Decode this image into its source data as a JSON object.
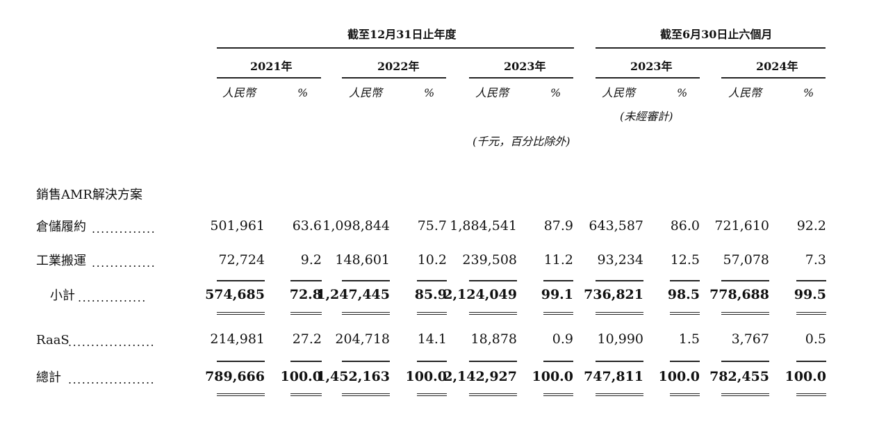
{
  "header": {
    "group1": "截至12月31日止年度",
    "group2": "截至6月30日止六個月",
    "years": [
      "2021年",
      "2022年",
      "2023年",
      "2023年",
      "2024年"
    ],
    "currency": "人民幣",
    "pct": "%",
    "unaudited": "(未經審計)",
    "unit_note": "(千元，百分比除外)"
  },
  "section_title": "銷售AMR解決方案",
  "rows": [
    {
      "label": "倉儲履約",
      "leader": "..............",
      "values": [
        "501,961",
        "63.6",
        "1,098,844",
        "75.7",
        "1,884,541",
        "87.9",
        "643,587",
        "86.0",
        "721,610",
        "92.2"
      ]
    },
    {
      "label": "工業搬運",
      "leader": "..............",
      "values": [
        "72,724",
        "9.2",
        "148,601",
        "10.2",
        "239,508",
        "11.2",
        "93,234",
        "12.5",
        "57,078",
        "7.3"
      ]
    },
    {
      "label": "小計",
      "leader": "...............",
      "values": [
        "574,685",
        "72.8",
        "1,247,445",
        "85.9",
        "2,124,049",
        "99.1",
        "736,821",
        "98.5",
        "778,688",
        "99.5"
      ]
    },
    {
      "label": "RaaS",
      "leader": "...................",
      "values": [
        "214,981",
        "27.2",
        "204,718",
        "14.1",
        "18,878",
        "0.9",
        "10,990",
        "1.5",
        "3,767",
        "0.5"
      ]
    },
    {
      "label": "總計",
      "leader": "...................",
      "values": [
        "789,666",
        "100.0",
        "1,452,163",
        "100.0",
        "2,142,927",
        "100.0",
        "747,811",
        "100.0",
        "782,455",
        "100.0"
      ]
    }
  ]
}
